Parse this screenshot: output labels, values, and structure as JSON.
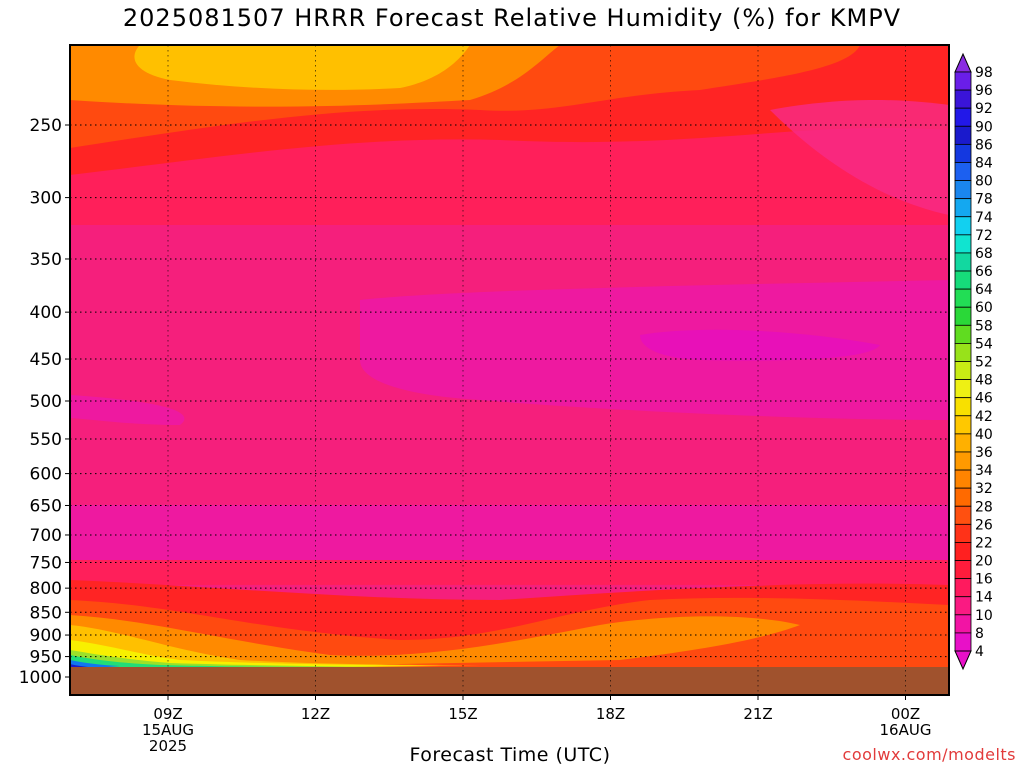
{
  "chart_data": {
    "type": "heatmap",
    "title": "2025081507 HRRR Forecast Relative Humidity (%) for KMPV",
    "xlabel": "Forecast Time (UTC)",
    "ylabel": "",
    "y_ticks": [
      "250",
      "300",
      "350",
      "400",
      "450",
      "500",
      "550",
      "600",
      "650",
      "700",
      "750",
      "800",
      "850",
      "900",
      "950",
      "1000"
    ],
    "x_ticks": [
      {
        "lines": [
          "09Z",
          "15AUG",
          "2025"
        ]
      },
      {
        "lines": [
          "12Z"
        ]
      },
      {
        "lines": [
          "15Z"
        ]
      },
      {
        "lines": [
          "18Z"
        ]
      },
      {
        "lines": [
          "21Z"
        ]
      },
      {
        "lines": [
          "00Z",
          "16AUG"
        ]
      }
    ],
    "colorbar_levels": [
      "98",
      "96",
      "92",
      "90",
      "86",
      "84",
      "80",
      "78",
      "74",
      "72",
      "68",
      "66",
      "64",
      "60",
      "58",
      "54",
      "52",
      "48",
      "46",
      "42",
      "40",
      "36",
      "34",
      "32",
      "28",
      "26",
      "22",
      "20",
      "16",
      "14",
      "10",
      "8",
      "4"
    ],
    "colors": {
      "very_dry": "#f0149b",
      "dry": "#ff1a75",
      "low": "#ff2850",
      "red": "#ff2020",
      "orange_red": "#ff4a10",
      "orange": "#ff8a00",
      "yellow_orange": "#ffc000",
      "yellow": "#f8f000",
      "terrain": "#a0522d"
    },
    "grid": true,
    "legend": "right colorbar"
  },
  "credit": "coolwx.com/modelts"
}
